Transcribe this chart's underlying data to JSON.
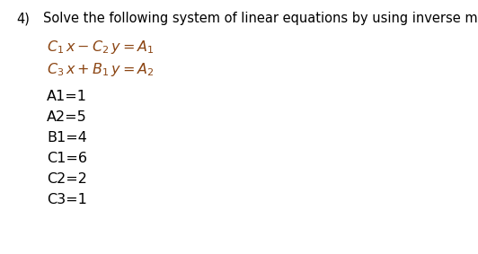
{
  "background_color": "#ffffff",
  "number_label": "4)",
  "title_text": "Solve the following system of linear equations by using inverse matrix method.",
  "title_fontsize": 10.5,
  "title_color": "#000000",
  "eq1": "$\\mathit{C}_1\\,x - \\mathit{C}_2\\,y = \\mathit{A}_1$",
  "eq2": "$\\mathit{C}_3\\,x + \\mathit{B}_1\\,y = \\mathit{A}_2$",
  "eq_color": "#8B4513",
  "eq_fontsize": 11.5,
  "variables": [
    "A1=1",
    "A2=5",
    "B1=4",
    "C1=6",
    "C2=2",
    "C3=1"
  ],
  "var_fontsize": 11.5,
  "var_color": "#000000"
}
